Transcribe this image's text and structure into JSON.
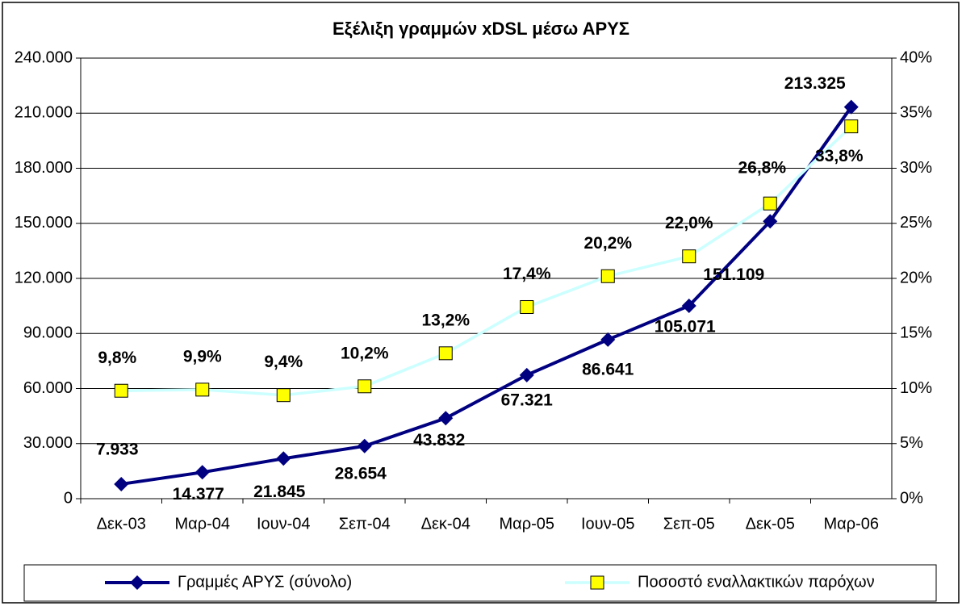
{
  "chart_data": {
    "type": "line",
    "title": "Εξέλιξη γραμμών xDSL μέσω ΑΡΥΣ",
    "categories": [
      "Δεκ-03",
      "Μαρ-04",
      "Ιουν-04",
      "Σεπ-04",
      "Δεκ-04",
      "Μαρ-05",
      "Ιουν-05",
      "Σεπ-05",
      "Δεκ-05",
      "Μαρ-06"
    ],
    "series": [
      {
        "name": "Γραμμές ΑΡΥΣ (σύνολο)",
        "color": "#000080",
        "values": [
          7933,
          14377,
          21845,
          28654,
          43832,
          67321,
          86641,
          105071,
          151109,
          213325
        ],
        "value_labels": [
          "7.933",
          "14.377",
          "21.845",
          "28.654",
          "43.832",
          "67.321",
          "86.641",
          "105.071",
          "151.109",
          "213.325"
        ]
      },
      {
        "name": "Ποσοστό εναλλακτικών παρόχων",
        "color": "#ccffff",
        "marker_color": "#ffff00",
        "axis": "y2",
        "values": [
          9.8,
          9.9,
          9.4,
          10.2,
          13.2,
          17.4,
          20.2,
          22.0,
          26.8,
          33.8
        ],
        "value_labels": [
          "9,8%",
          "9,9%",
          "9,4%",
          "10,2%",
          "13,2%",
          "17,4%",
          "20,2%",
          "22,0%",
          "26,8%",
          "33,8%"
        ]
      }
    ],
    "ylim": [
      0,
      240000
    ],
    "yticks": [
      0,
      {
        "value": 30000,
        "label": "30.000"
      },
      {
        "value": 60000,
        "label": "60.000"
      },
      {
        "value": 90000,
        "label": "90.000"
      },
      {
        "value": 120000,
        "label": "120.000"
      },
      {
        "value": 150000,
        "label": "150.000"
      },
      {
        "value": 180000,
        "label": "180.000"
      },
      {
        "value": 210000,
        "label": "210.000"
      },
      {
        "value": 240000,
        "label": "240.000"
      }
    ],
    "y2lim": [
      0,
      40
    ],
    "y2ticks": [
      {
        "value": 0,
        "label": "0%"
      },
      {
        "value": 5,
        "label": "5%"
      },
      {
        "value": 10,
        "label": "10%"
      },
      {
        "value": 15,
        "label": "15%"
      },
      {
        "value": 20,
        "label": "20%"
      },
      {
        "value": 25,
        "label": "25%"
      },
      {
        "value": 30,
        "label": "30%"
      },
      {
        "value": 35,
        "label": "35%"
      },
      {
        "value": 40,
        "label": "40%"
      }
    ],
    "grid": true,
    "legend": "bottom"
  }
}
